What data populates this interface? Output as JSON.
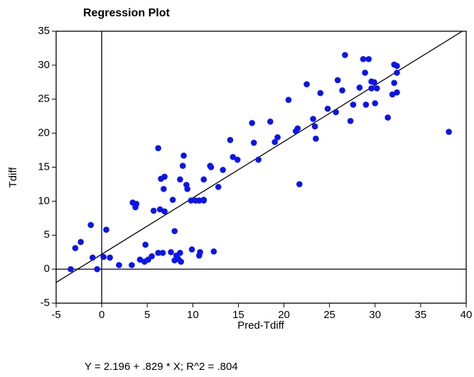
{
  "chart_data": {
    "type": "scatter",
    "title": "Regression Plot",
    "x_label": "Pred-Tdiff",
    "y_label": "Tdiff",
    "footnote": "Y = 2.196 + .829 * X; R^2 = .804",
    "fit": {
      "intercept": 2.196,
      "slope": 0.829
    },
    "reference_lines": {
      "x": 0,
      "y": 0
    },
    "color": "#0a14f0",
    "xlim": [
      -5,
      40
    ],
    "ylim": [
      -5,
      35
    ],
    "xticks": [
      -5,
      0,
      5,
      10,
      15,
      20,
      25,
      30,
      35,
      40
    ],
    "yticks": [
      -5,
      0,
      5,
      10,
      15,
      20,
      25,
      30,
      35
    ],
    "x": [
      -3.4,
      -2.9,
      -2.3,
      -1.2,
      -1.0,
      -0.5,
      0.2,
      0.5,
      0.9,
      1.9,
      3.3,
      3.4,
      3.7,
      3.8,
      4.2,
      4.7,
      4.8,
      5.1,
      5.5,
      5.7,
      6.2,
      6.2,
      6.4,
      6.5,
      6.7,
      6.8,
      6.9,
      6.9,
      7.6,
      7.8,
      8.0,
      8.0,
      8.2,
      8.4,
      8.6,
      8.6,
      8.7,
      8.9,
      9.0,
      9.3,
      9.4,
      9.8,
      9.9,
      10.3,
      10.7,
      10.7,
      10.8,
      11.2,
      11.2,
      11.2,
      11.9,
      12.0,
      12.3,
      12.8,
      13.3,
      14.1,
      14.4,
      14.9,
      16.5,
      16.7,
      17.2,
      18.5,
      19.0,
      19.3,
      20.5,
      21.3,
      21.5,
      21.7,
      22.5,
      23.2,
      23.4,
      23.5,
      24.0,
      24.8,
      25.7,
      25.9,
      26.4,
      26.7,
      27.3,
      27.6,
      28.3,
      28.7,
      28.9,
      29.0,
      29.3,
      29.6,
      29.6,
      29.9,
      30.0,
      30.2,
      31.4,
      31.9,
      32.1,
      32.1,
      32.4,
      32.4,
      32.4,
      38.1
    ],
    "values": [
      0,
      3.1,
      4.0,
      6.5,
      1.7,
      0,
      1.8,
      5.8,
      1.7,
      0.6,
      0.6,
      9.8,
      9.1,
      9.6,
      1.4,
      1.1,
      3.6,
      1.4,
      1.9,
      8.6,
      2.4,
      17.8,
      8.8,
      13.3,
      2.4,
      11.8,
      13.6,
      8.5,
      2.5,
      10.2,
      1.3,
      5.6,
      2.0,
      1.5,
      13.2,
      2.4,
      1.1,
      15.2,
      16.7,
      12.4,
      11.8,
      10.1,
      2.9,
      10.1,
      10.1,
      2.0,
      2.5,
      10.1,
      13.2,
      10.2,
      15.2,
      15.0,
      2.6,
      12.1,
      14.6,
      19.0,
      16.5,
      16.1,
      21.5,
      18.6,
      16.1,
      21.7,
      18.7,
      19.4,
      24.9,
      20.3,
      20.7,
      12.5,
      27.2,
      22.1,
      21.0,
      19.2,
      25.9,
      23.6,
      23.1,
      27.8,
      26.3,
      31.5,
      21.8,
      24.2,
      26.7,
      30.9,
      28.9,
      24.2,
      30.9,
      27.6,
      26.6,
      27.5,
      24.4,
      26.6,
      22.3,
      25.7,
      27.4,
      30.1,
      29.9,
      26.0,
      28.9,
      20.2
    ]
  }
}
